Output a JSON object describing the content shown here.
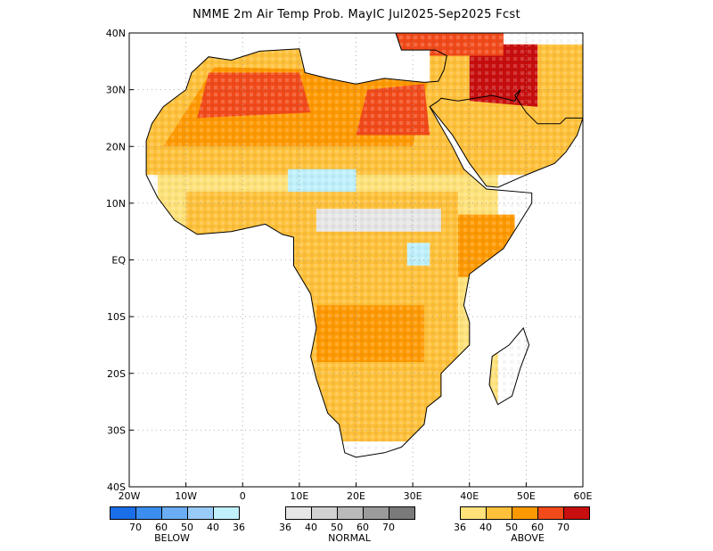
{
  "title": "NMME 2m Air Temp Prob. MayIC  Jul2025-Sep2025 Fcst",
  "map": {
    "lon_range": [
      -20,
      60
    ],
    "lat_range": [
      -40,
      40
    ],
    "lon_ticks": [
      {
        "value": -20,
        "label": "20W"
      },
      {
        "value": -10,
        "label": "10W"
      },
      {
        "value": 0,
        "label": "0"
      },
      {
        "value": 10,
        "label": "10E"
      },
      {
        "value": 20,
        "label": "20E"
      },
      {
        "value": 30,
        "label": "30E"
      },
      {
        "value": 40,
        "label": "40E"
      },
      {
        "value": 50,
        "label": "50E"
      },
      {
        "value": 60,
        "label": "60E"
      }
    ],
    "lat_ticks": [
      {
        "value": 40,
        "label": "40N"
      },
      {
        "value": 30,
        "label": "30N"
      },
      {
        "value": 20,
        "label": "20N"
      },
      {
        "value": 10,
        "label": "10N"
      },
      {
        "value": 0,
        "label": "EQ"
      },
      {
        "value": -10,
        "label": "10S"
      },
      {
        "value": -20,
        "label": "20S"
      },
      {
        "value": -30,
        "label": "30S"
      },
      {
        "value": -40,
        "label": "40S"
      }
    ],
    "grid": "dotted",
    "coastline": [
      [
        -17,
        21
      ],
      [
        -16,
        24
      ],
      [
        -14,
        27
      ],
      [
        -10,
        30
      ],
      [
        -9,
        33
      ],
      [
        -6,
        35.8
      ],
      [
        -2,
        35.2
      ],
      [
        3,
        36.8
      ],
      [
        10,
        37.2
      ],
      [
        11,
        33
      ],
      [
        15,
        32
      ],
      [
        20,
        31
      ],
      [
        25,
        32
      ],
      [
        32,
        31.3
      ],
      [
        34.5,
        31.5
      ],
      [
        35.5,
        33.5
      ],
      [
        36,
        36
      ],
      [
        34,
        37
      ],
      [
        28,
        37
      ],
      [
        27,
        40
      ],
      [
        45,
        40
      ],
      [
        60,
        40
      ],
      [
        60,
        25
      ],
      [
        57,
        25
      ],
      [
        56,
        24
      ],
      [
        52,
        24
      ],
      [
        50,
        26
      ],
      [
        48,
        29
      ],
      [
        49,
        30
      ],
      [
        48,
        28
      ],
      [
        44,
        29
      ],
      [
        38,
        28
      ],
      [
        35,
        28.5
      ],
      [
        34.5,
        28
      ],
      [
        33,
        27
      ],
      [
        37,
        20
      ],
      [
        39,
        16
      ],
      [
        43,
        12.5
      ],
      [
        51,
        11.8
      ],
      [
        51,
        10
      ],
      [
        46,
        2
      ],
      [
        40,
        -2.5
      ],
      [
        39,
        -8
      ],
      [
        40,
        -11
      ],
      [
        40,
        -15
      ],
      [
        35,
        -20
      ],
      [
        35,
        -24
      ],
      [
        32.5,
        -26
      ],
      [
        32,
        -29
      ],
      [
        28,
        -33
      ],
      [
        25,
        -34
      ],
      [
        20,
        -34.8
      ],
      [
        18,
        -34
      ],
      [
        17,
        -29
      ],
      [
        15,
        -27
      ],
      [
        13,
        -21
      ],
      [
        12,
        -17
      ],
      [
        13,
        -12
      ],
      [
        12,
        -6
      ],
      [
        9,
        -1
      ],
      [
        9,
        4
      ],
      [
        7,
        4.5
      ],
      [
        4,
        6.3
      ],
      [
        -2,
        5
      ],
      [
        -8,
        4.5
      ],
      [
        -12,
        7
      ],
      [
        -15,
        11
      ],
      [
        -17,
        15
      ],
      [
        -17,
        21
      ]
    ],
    "madagascar": [
      [
        49.5,
        -12
      ],
      [
        50.5,
        -15
      ],
      [
        49,
        -19
      ],
      [
        47.5,
        -24
      ],
      [
        45,
        -25.5
      ],
      [
        43.5,
        -22
      ],
      [
        44,
        -17
      ],
      [
        47,
        -15
      ],
      [
        49.5,
        -12
      ]
    ],
    "arabian_coast": [
      [
        33,
        27
      ],
      [
        37,
        22
      ],
      [
        40,
        17
      ],
      [
        43,
        13
      ],
      [
        45,
        12.8
      ],
      [
        50,
        15
      ],
      [
        55,
        17
      ],
      [
        57,
        19
      ],
      [
        59,
        22
      ],
      [
        60,
        25
      ]
    ],
    "anomaly_regions": [
      {
        "category": "above-36-40",
        "poly": [
          [
            -15,
            -30
          ],
          [
            45,
            -30
          ],
          [
            45,
            20
          ],
          [
            -15,
            20
          ]
        ]
      },
      {
        "category": "above-40-50",
        "poly": [
          [
            -10,
            -32
          ],
          [
            38,
            -32
          ],
          [
            38,
            12
          ],
          [
            -10,
            12
          ]
        ]
      },
      {
        "category": "above-40-50",
        "poly": [
          [
            -17,
            15
          ],
          [
            60,
            15
          ],
          [
            60,
            38
          ],
          [
            -17,
            38
          ]
        ]
      },
      {
        "category": "above-50-60",
        "poly": [
          [
            -14,
            20
          ],
          [
            30,
            20
          ],
          [
            33,
            33
          ],
          [
            -5,
            34
          ]
        ]
      },
      {
        "category": "above-60-70",
        "poly": [
          [
            -8,
            25
          ],
          [
            12,
            26
          ],
          [
            10,
            33
          ],
          [
            -6,
            33
          ]
        ]
      },
      {
        "category": "above-60-70",
        "poly": [
          [
            20,
            22
          ],
          [
            33,
            22
          ],
          [
            32,
            31
          ],
          [
            22,
            30
          ]
        ]
      },
      {
        "category": "above-70",
        "poly": [
          [
            40,
            28
          ],
          [
            52,
            27
          ],
          [
            52,
            38
          ],
          [
            40,
            38
          ]
        ]
      },
      {
        "category": "above-60-70",
        "poly": [
          [
            20,
            36
          ],
          [
            46,
            36
          ],
          [
            46,
            40
          ],
          [
            20,
            40
          ]
        ]
      },
      {
        "category": "above-50-60",
        "poly": [
          [
            13,
            -18
          ],
          [
            32,
            -18
          ],
          [
            32,
            -8
          ],
          [
            13,
            -8
          ]
        ]
      },
      {
        "category": "above-50-60",
        "poly": [
          [
            38,
            -3
          ],
          [
            48,
            -3
          ],
          [
            48,
            8
          ],
          [
            38,
            8
          ]
        ]
      },
      {
        "category": "below-36-40",
        "poly": [
          [
            8,
            12
          ],
          [
            20,
            12
          ],
          [
            20,
            16
          ],
          [
            8,
            16
          ]
        ]
      },
      {
        "category": "below-36-40",
        "poly": [
          [
            29,
            -1
          ],
          [
            33,
            -1
          ],
          [
            33,
            3
          ],
          [
            29,
            3
          ]
        ]
      },
      {
        "category": "normal-36-40",
        "poly": [
          [
            13,
            5
          ],
          [
            35,
            5
          ],
          [
            35,
            9
          ],
          [
            13,
            9
          ]
        ]
      }
    ]
  },
  "legend": {
    "below": {
      "label": "BELOW",
      "ticks": [
        "70",
        "60",
        "50",
        "40",
        "36"
      ],
      "colors": [
        "#1a6fe8",
        "#3b8ef0",
        "#6aadf4",
        "#99cbf8",
        "#bff0fb"
      ]
    },
    "normal": {
      "label": "NORMAL",
      "ticks": [
        "36",
        "40",
        "50",
        "60",
        "70"
      ],
      "colors": [
        "#e6e6e6",
        "#d2d2d2",
        "#b9b9b9",
        "#9b9b9b",
        "#7a7a7a"
      ]
    },
    "above": {
      "label": "ABOVE",
      "ticks": [
        "36",
        "40",
        "50",
        "60",
        "70"
      ],
      "colors": [
        "#ffe27a",
        "#ffc13a",
        "#ff9900",
        "#f24a1a",
        "#c80e0e"
      ]
    }
  }
}
